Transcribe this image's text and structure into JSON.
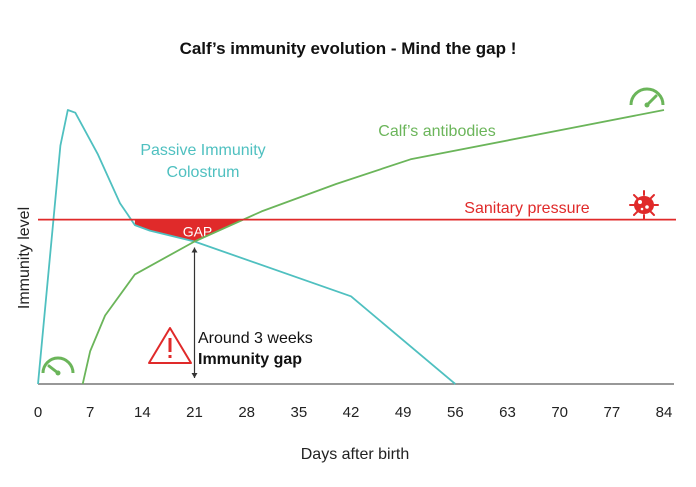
{
  "chart_data": {
    "type": "line",
    "title": "Calf’s immunity evolution - Mind the gap !",
    "xlabel": "Days after birth",
    "ylabel": "Immunity level",
    "xlim": [
      0,
      84
    ],
    "ylim": [
      0,
      100
    ],
    "x_ticks": [
      "0",
      "7",
      "14",
      "21",
      "28",
      "35",
      "42",
      "49",
      "56",
      "63",
      "70",
      "77",
      "84"
    ],
    "x_tick_values": [
      0,
      7,
      14,
      21,
      28,
      35,
      42,
      49,
      56,
      63,
      70,
      77,
      84
    ],
    "grid": false,
    "series": [
      {
        "name": "Passive Immunity Colostrum",
        "label_line1": "Passive Immunity",
        "label_line2": "Colostrum",
        "color": "#4fc0c0",
        "x": [
          0,
          3,
          4,
          5,
          8,
          11,
          13,
          15,
          21,
          42,
          56
        ],
        "y": [
          0,
          87,
          100,
          99,
          84,
          66,
          58,
          56,
          52,
          32,
          0
        ]
      },
      {
        "name": "Calf’s antibodies",
        "color": "#6bb55a",
        "x": [
          6,
          7,
          9,
          13,
          21,
          30,
          40,
          50,
          84
        ],
        "y": [
          0,
          12,
          25,
          40,
          52,
          63,
          73,
          82,
          100
        ]
      },
      {
        "name": "Sanitary pressure",
        "color": "#e02a2a",
        "x": [
          0,
          84
        ],
        "y": [
          60,
          60
        ]
      }
    ],
    "annotations": {
      "gap_label": "GAP",
      "gap_x_range": [
        13,
        29
      ],
      "gap_bottom_x": 21,
      "gap_bottom_y": 52,
      "gap_color": "#e02a2a",
      "arrow_x": 21,
      "arrow_y_range": [
        0,
        52
      ],
      "note_line1": "Around 3 weeks",
      "note_line2": "Immunity gap",
      "warning_icon": "warning-triangle-icon",
      "gauge_icon_low": "gauge-low-icon",
      "gauge_icon_high": "gauge-high-icon",
      "bacteria_icon": "bacteria-icon"
    }
  }
}
